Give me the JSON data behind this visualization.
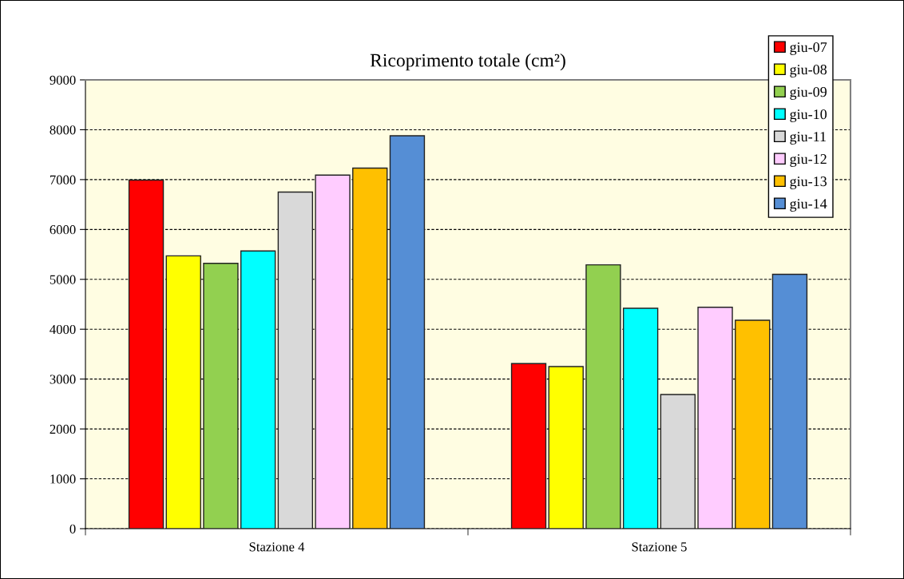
{
  "chart_data": {
    "type": "bar",
    "title": "Ricoprimento totale (cm²)",
    "categories": [
      "Stazione 4",
      "Stazione 5"
    ],
    "series": [
      {
        "name": "giu-07",
        "color": "#ff0000",
        "values": [
          6990,
          3310
        ]
      },
      {
        "name": "giu-08",
        "color": "#ffff00",
        "values": [
          5470,
          3250
        ]
      },
      {
        "name": "giu-09",
        "color": "#92d050",
        "values": [
          5320,
          5290
        ]
      },
      {
        "name": "giu-10",
        "color": "#00ffff",
        "values": [
          5570,
          4420
        ]
      },
      {
        "name": "giu-11",
        "color": "#d9d9d9",
        "values": [
          6750,
          2690
        ]
      },
      {
        "name": "giu-12",
        "color": "#ffccff",
        "values": [
          7090,
          4440
        ]
      },
      {
        "name": "giu-13",
        "color": "#ffc000",
        "values": [
          7230,
          4180
        ]
      },
      {
        "name": "giu-14",
        "color": "#558ed5",
        "values": [
          7880,
          5100
        ]
      }
    ],
    "ylim": [
      0,
      9000
    ],
    "yticks": [
      0,
      1000,
      2000,
      3000,
      4000,
      5000,
      6000,
      7000,
      8000,
      9000
    ],
    "grid": "y",
    "legend": "top right"
  }
}
